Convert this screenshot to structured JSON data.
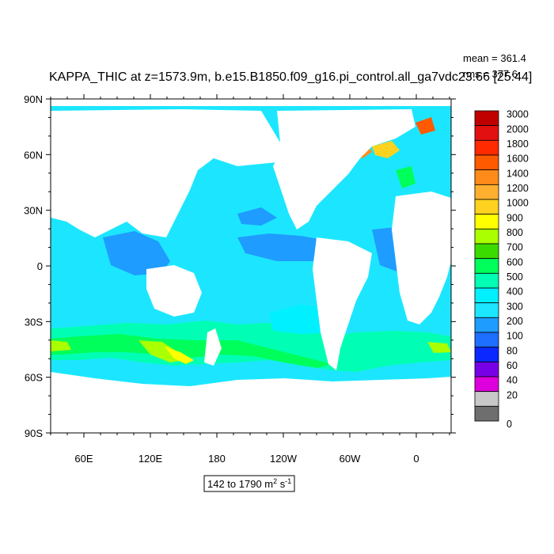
{
  "title": "KAPPA_THIC at z=1573.9m, b.e15.B1850.f09_g16.pi_control.all_ga7vdc23.66 [25:44]",
  "stats": {
    "mean": "mean = 361.4",
    "rms": "rms = 377.6"
  },
  "range_label": {
    "prefix": "142 to 1790 m",
    "sup1": "2",
    "mid": " s",
    "sup2": "-1"
  },
  "lat_ticks": [
    "90N",
    "60N",
    "30N",
    "0",
    "30S",
    "60S",
    "90S"
  ],
  "lon_ticks": [
    "60E",
    "120E",
    "180",
    "120W",
    "60W",
    "0"
  ],
  "colorbar": {
    "levels": [
      "3000",
      "2000",
      "1800",
      "1600",
      "1400",
      "1200",
      "1000",
      "900",
      "800",
      "700",
      "600",
      "500",
      "400",
      "300",
      "200",
      "100",
      "80",
      "60",
      "40",
      "20",
      "0"
    ],
    "colors": [
      "#c00000",
      "#e21010",
      "#ff2a00",
      "#ff5a00",
      "#ff8c1a",
      "#ffb030",
      "#ffd21f",
      "#ffff00",
      "#aaff00",
      "#3cdb00",
      "#00ff5a",
      "#00ffb4",
      "#00f0ff",
      "#1ce6ff",
      "#1e9cff",
      "#1e6eff",
      "#0a28ff",
      "#7800e6",
      "#dd00dd",
      "#c8c8c8",
      "#6e6e6e"
    ]
  },
  "field_colors": {
    "land": "#ffffff",
    "ocean_base": "#1ce6ff",
    "ocean_low": "#1e9cff",
    "ocean_mid": "#00ffb4",
    "ocean_high": "#00ff5a",
    "ocean_peak": "#ffff00",
    "ocean_max": "#ff8c1a"
  }
}
